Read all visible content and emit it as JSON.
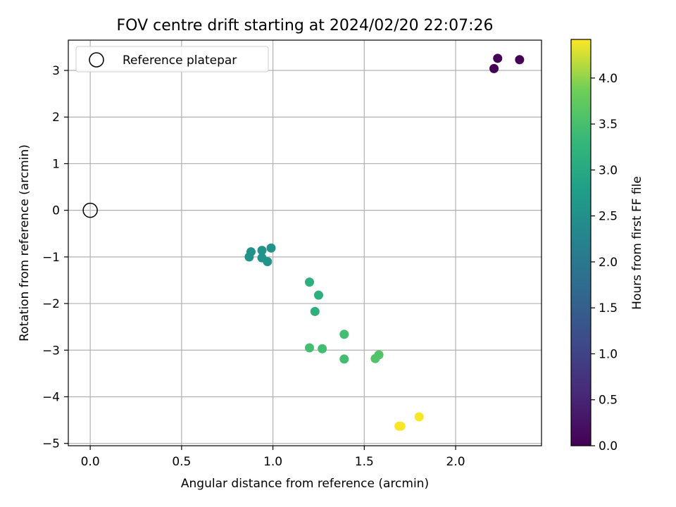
{
  "chart_data": {
    "type": "scatter",
    "title": "FOV centre drift starting at 2024/02/20 22:07:26",
    "xlabel": "Angular distance from reference (arcmin)",
    "ylabel": "Rotation from reference (arcmin)",
    "xlim": [
      -0.12,
      2.47
    ],
    "ylim": [
      -5.05,
      3.65
    ],
    "xticks": [
      0.0,
      0.5,
      1.0,
      1.5,
      2.0
    ],
    "xtick_labels": [
      "0.0",
      "0.5",
      "1.0",
      "1.5",
      "2.0"
    ],
    "yticks": [
      -5,
      -4,
      -3,
      -2,
      -1,
      0,
      1,
      2,
      3
    ],
    "ytick_labels": [
      "−5",
      "−4",
      "−3",
      "−2",
      "−1",
      "0",
      "1",
      "2",
      "3"
    ],
    "grid": true,
    "legend": {
      "position": "top-left",
      "entries": [
        "Reference platepar"
      ]
    },
    "reference_point": {
      "x": 0.0,
      "y": 0.0
    },
    "colorbar": {
      "label": "Hours from first FF file",
      "colormap": "viridis",
      "range": [
        0.0,
        4.42
      ],
      "ticks": [
        0.0,
        0.5,
        1.0,
        1.5,
        2.0,
        2.5,
        3.0,
        3.5,
        4.0
      ],
      "tick_labels": [
        "0.0",
        "0.5",
        "1.0",
        "1.5",
        "2.0",
        "2.5",
        "3.0",
        "3.5",
        "4.0"
      ]
    },
    "series": [
      {
        "points": [
          {
            "x": 2.23,
            "y": 3.26,
            "c": 0.0
          },
          {
            "x": 2.35,
            "y": 3.23,
            "c": 0.0
          },
          {
            "x": 2.21,
            "y": 3.04,
            "c": 0.0
          },
          {
            "x": 0.99,
            "y": -0.81,
            "c": 2.55
          },
          {
            "x": 0.88,
            "y": -0.89,
            "c": 2.55
          },
          {
            "x": 0.94,
            "y": -0.86,
            "c": 2.55
          },
          {
            "x": 0.87,
            "y": -1.0,
            "c": 2.55
          },
          {
            "x": 0.94,
            "y": -1.02,
            "c": 2.55
          },
          {
            "x": 0.97,
            "y": -1.1,
            "c": 2.55
          },
          {
            "x": 1.2,
            "y": -1.54,
            "c": 3.15
          },
          {
            "x": 1.25,
            "y": -1.82,
            "c": 3.15
          },
          {
            "x": 1.23,
            "y": -2.17,
            "c": 3.15
          },
          {
            "x": 1.39,
            "y": -2.66,
            "c": 3.45
          },
          {
            "x": 1.2,
            "y": -2.95,
            "c": 3.45
          },
          {
            "x": 1.27,
            "y": -2.97,
            "c": 3.45
          },
          {
            "x": 1.39,
            "y": -3.19,
            "c": 3.45
          },
          {
            "x": 1.58,
            "y": -3.1,
            "c": 3.6
          },
          {
            "x": 1.56,
            "y": -3.18,
            "c": 3.6
          },
          {
            "x": 1.8,
            "y": -4.43,
            "c": 4.4
          },
          {
            "x": 1.69,
            "y": -4.63,
            "c": 4.4
          },
          {
            "x": 1.7,
            "y": -4.63,
            "c": 4.4
          }
        ]
      }
    ]
  }
}
